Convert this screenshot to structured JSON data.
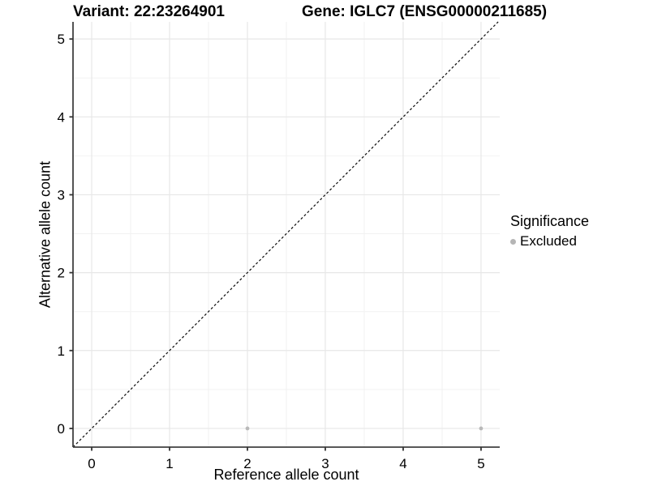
{
  "chart_data": {
    "type": "scatter",
    "title_left": "Variant: 22:23264901",
    "title_right": "Gene: IGLC7 (ENSG00000211685)",
    "xlabel": "Reference allele count",
    "ylabel": "Alternative allele count",
    "xlim": [
      -0.24,
      5.24
    ],
    "ylim": [
      -0.24,
      5.22
    ],
    "xticks": [
      0,
      1,
      2,
      3,
      4,
      5
    ],
    "yticks": [
      0,
      1,
      2,
      3,
      4,
      5
    ],
    "minor_xticks": [
      0.5,
      1.5,
      2.5,
      3.5,
      4.5
    ],
    "minor_yticks": [
      0.5,
      1.5,
      2.5,
      3.5,
      4.5
    ],
    "grid": "major and minor, light grey on white",
    "series": [
      {
        "name": "Excluded",
        "marker": "circle",
        "color": "#b9b9b9",
        "points": [
          [
            2,
            0
          ],
          [
            5,
            0
          ]
        ]
      }
    ],
    "reference_line": {
      "description": "identity line y = x",
      "style": "dashed",
      "color": "#141414",
      "from": [
        -0.24,
        -0.24
      ],
      "to": [
        5.22,
        5.22
      ]
    },
    "legend": {
      "title": "Significance",
      "position": "right",
      "entries": [
        {
          "label": "Excluded",
          "color": "#b5b5b5"
        }
      ]
    }
  },
  "colors": {
    "background": "#ffffff",
    "axis_line": "#404040",
    "tick_mark": "#333333",
    "grid_major": "#e7e7e7",
    "grid_minor": "#f2f2f2",
    "text": "#000000",
    "excluded_point": "#b9b9b9"
  }
}
